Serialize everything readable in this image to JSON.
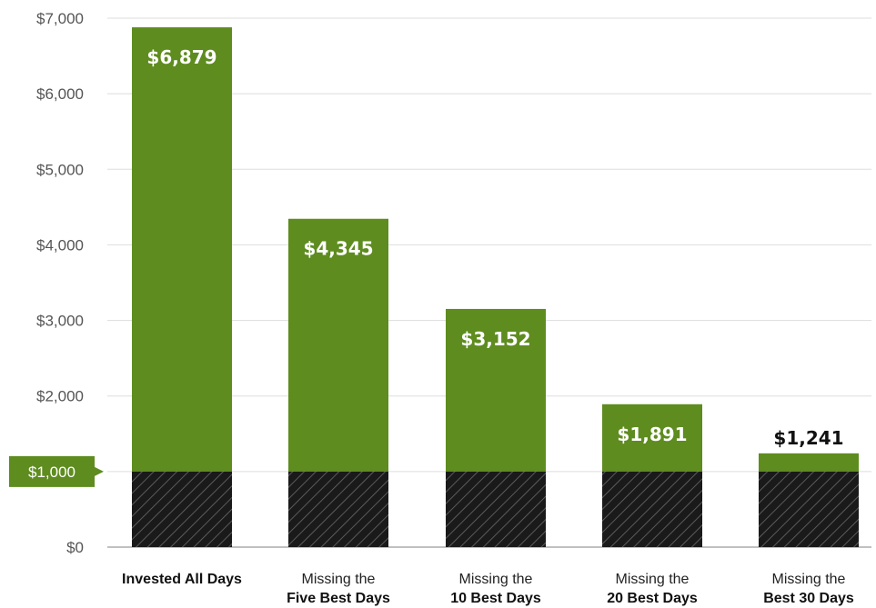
{
  "chart_data": {
    "type": "bar",
    "categories": [
      {
        "line1": "Invested All Days",
        "line2": ""
      },
      {
        "line1": "Missing the",
        "line2": "Five Best Days"
      },
      {
        "line1": "Missing the",
        "line2": "10 Best Days"
      },
      {
        "line1": "Missing the",
        "line2": "20 Best Days"
      },
      {
        "line1": "Missing the",
        "line2": "Best 30 Days"
      }
    ],
    "values": [
      6879,
      4345,
      3152,
      1891,
      1241
    ],
    "value_labels": [
      "$6,879",
      "$4,345",
      "$3,152",
      "$1,891",
      "$1,241"
    ],
    "baseline_value": 1000,
    "baseline_label": "$1,000",
    "ylim": [
      0,
      7000
    ],
    "y_ticks": [
      {
        "value": 0,
        "label": "$0"
      },
      {
        "value": 1000,
        "label": ""
      },
      {
        "value": 2000,
        "label": "$2,000"
      },
      {
        "value": 3000,
        "label": "$3,000"
      },
      {
        "value": 4000,
        "label": "$4,000"
      },
      {
        "value": 5000,
        "label": "$5,000"
      },
      {
        "value": 6000,
        "label": "$6,000"
      },
      {
        "value": 7000,
        "label": "$7,000"
      }
    ],
    "grid": true,
    "colors": {
      "bar": "#5e8c1f",
      "baseline_fill": "#1a1a1a",
      "hatch": "#6a6a6a",
      "grid": "#dddddd",
      "tag": "#5e8c1f"
    }
  }
}
